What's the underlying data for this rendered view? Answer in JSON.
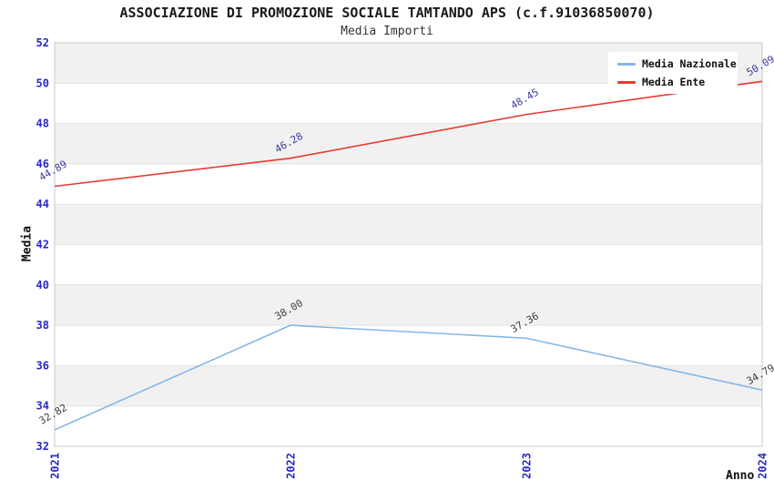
{
  "chart_data": {
    "type": "line",
    "title": "ASSOCIAZIONE DI PROMOZIONE SOCIALE TAMTANDO APS (c.f.91036850070)",
    "subtitle": "Media Importi",
    "xlabel": "Anno",
    "ylabel": "Media",
    "categories": [
      "2021",
      "2022",
      "2023",
      "2024"
    ],
    "series": [
      {
        "name": "Media Nazionale",
        "values": [
          32.82,
          38.0,
          37.36,
          34.79
        ],
        "color": "#85b7e8",
        "label_color": "#3d3d3d"
      },
      {
        "name": "Media Ente",
        "values": [
          44.89,
          46.28,
          48.45,
          50.09
        ],
        "color": "#e63a34",
        "label_color": "#3b3b9d"
      }
    ],
    "ylim": [
      32,
      52
    ],
    "ytick_step": 2,
    "yticks": [
      32,
      34,
      36,
      38,
      40,
      42,
      44,
      46,
      48,
      50,
      52
    ],
    "grid": "on",
    "legend_position": "top-right",
    "axis_tick_color": "#2828cc",
    "band_color": "#f1f1f1",
    "gridline_color": "#e2e2e2",
    "plot_border_color": "#c9c9c9"
  }
}
